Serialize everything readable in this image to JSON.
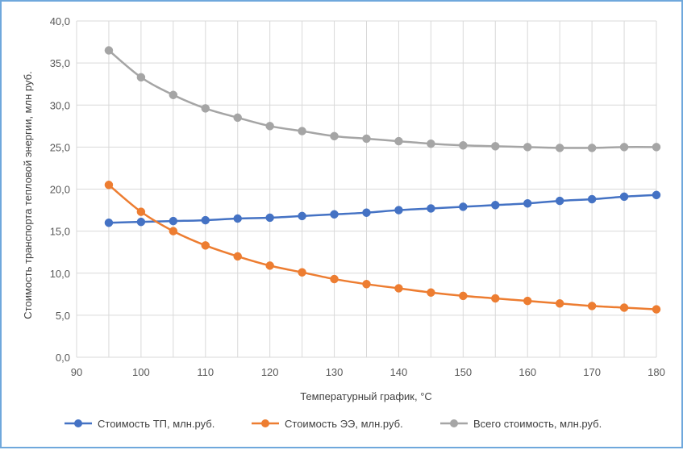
{
  "chart_data": {
    "type": "line",
    "xlabel": "Температурный график, °С",
    "ylabel": "Стоимость транспорта тепловой энергии, млн руб.",
    "xlim": [
      90,
      180
    ],
    "ylim": [
      0,
      40
    ],
    "x_ticks": [
      "90",
      "100",
      "110",
      "120",
      "130",
      "140",
      "150",
      "160",
      "170",
      "180"
    ],
    "y_ticks": [
      "0,0",
      "5,0",
      "10,0",
      "15,0",
      "20,0",
      "25,0",
      "30,0",
      "35,0",
      "40,0"
    ],
    "grid": true,
    "legend_position": "bottom",
    "x": [
      95,
      100,
      105,
      110,
      115,
      120,
      125,
      130,
      135,
      140,
      145,
      150,
      155,
      160,
      165,
      170,
      175,
      180
    ],
    "series": [
      {
        "name": "Стоимость ТП, млн.руб.",
        "color": "#4472c4",
        "values": [
          16.0,
          16.1,
          16.2,
          16.3,
          16.5,
          16.6,
          16.8,
          17.0,
          17.2,
          17.5,
          17.7,
          17.9,
          18.1,
          18.3,
          18.6,
          18.8,
          19.1,
          19.3
        ]
      },
      {
        "name": "Стоимость ЭЭ, млн.руб.",
        "color": "#ed7d31",
        "values": [
          20.5,
          17.3,
          15.0,
          13.3,
          12.0,
          10.9,
          10.1,
          9.3,
          8.7,
          8.2,
          7.7,
          7.3,
          7.0,
          6.7,
          6.4,
          6.1,
          5.9,
          5.7
        ]
      },
      {
        "name": "Всего стоимость, млн.руб.",
        "color": "#a5a5a5",
        "values": [
          36.5,
          33.3,
          31.2,
          29.6,
          28.5,
          27.5,
          26.9,
          26.3,
          26.0,
          25.7,
          25.4,
          25.2,
          25.1,
          25.0,
          24.9,
          24.9,
          25.0,
          25.0
        ]
      }
    ]
  }
}
